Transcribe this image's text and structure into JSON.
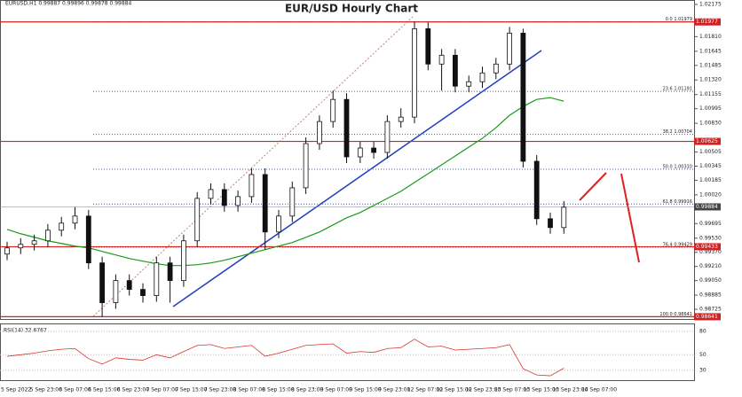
{
  "chart_data": {
    "type": "candlestick",
    "title": "EUR/USD Hourly Chart",
    "header": "EURUSD,H1  0.99887 0.99896 0.99878 0.99884",
    "ylim": [
      0.98615,
      1.02225
    ],
    "yticks": [
      1.02175,
      {
        "value": 1.0181,
        "label": "1.01810"
      },
      1.01645,
      1.01485,
      {
        "value": 1.0132,
        "label": "1.01320"
      },
      1.01155,
      1.00995,
      {
        "value": 1.0083,
        "label": "1.00830"
      },
      1.00505,
      1.00345,
      1.00185,
      {
        "value": 1.0002,
        "label": "1.00020"
      },
      0.99695,
      {
        "value": 0.9953,
        "label": "0.99530"
      },
      {
        "value": 0.9937,
        "label": "0.99370"
      },
      {
        "value": 0.9921,
        "label": "0.99210"
      },
      {
        "value": 0.9905,
        "label": "0.99050"
      },
      0.98885,
      0.98725
    ],
    "x_labels": [
      "5 Sep 2022",
      "5 Sep 23:00",
      "6 Sep 07:00",
      "6 Sep 15:00",
      "6 Sep 23:00",
      "7 Sep 07:00",
      "7 Sep 15:00",
      "7 Sep 23:00",
      "8 Sep 07:00",
      "8 Sep 15:00",
      "8 Sep 23:00",
      "9 Sep 07:00",
      "9 Sep 15:00",
      "9 Sep 23:00",
      "12 Sep 07:00",
      "12 Sep 15:00",
      "12 Sep 23:00",
      "13 Sep 07:00",
      "13 Sep 15:00",
      "13 Sep 23:00",
      "14 Sep 07:00"
    ],
    "open": [
      0.9935,
      0.9942,
      0.9946,
      0.995,
      0.9962,
      0.997,
      0.9978,
      0.9925,
      0.988,
      0.9905,
      0.9895,
      0.9888,
      0.9925,
      0.9905,
      0.995,
      0.9998,
      1.0008,
      0.999,
      1.0,
      1.0025,
      0.996,
      0.9978,
      1.001,
      1.006,
      1.0085,
      1.011,
      1.0045,
      1.0055,
      1.005,
      1.0085,
      1.009,
      1.019,
      1.015,
      1.016,
      1.0125,
      1.013,
      1.014,
      1.015,
      1.0185,
      1.004,
      0.9975,
      0.9965
    ],
    "high": [
      0.9949,
      0.9953,
      0.9957,
      0.9969,
      0.9977,
      0.9988,
      0.9985,
      0.9932,
      0.9912,
      0.9912,
      0.9902,
      0.9932,
      0.9932,
      0.9957,
      1.0005,
      1.0015,
      1.0015,
      1.0007,
      1.0032,
      1.0032,
      0.9985,
      1.0017,
      1.0067,
      1.0092,
      1.012,
      1.0117,
      1.0062,
      1.0062,
      1.0092,
      1.01,
      1.0198,
      1.0197,
      1.0167,
      1.0167,
      1.0137,
      1.0147,
      1.0157,
      1.0192,
      1.019,
      1.0047,
      0.9982,
      0.9995
    ],
    "low": [
      0.9928,
      0.9935,
      0.9939,
      0.9943,
      0.9955,
      0.9963,
      0.9918,
      0.9864,
      0.9873,
      0.9888,
      0.988,
      0.9881,
      0.988,
      0.9898,
      0.9943,
      0.9991,
      0.9983,
      0.9983,
      0.9993,
      0.994,
      0.9953,
      0.9971,
      1.0003,
      1.0053,
      1.0078,
      1.0038,
      1.0038,
      1.0043,
      1.0043,
      1.0078,
      1.0083,
      1.0143,
      1.012,
      1.0118,
      1.0118,
      1.0123,
      1.0133,
      1.0143,
      1.0033,
      0.9968,
      0.9958,
      0.9958
    ],
    "close": [
      0.9942,
      0.9946,
      0.995,
      0.9962,
      0.997,
      0.9978,
      0.9925,
      0.988,
      0.9905,
      0.9895,
      0.9888,
      0.9925,
      0.9905,
      0.995,
      0.9998,
      1.0008,
      0.999,
      1.0,
      1.0025,
      0.996,
      0.9978,
      1.001,
      1.006,
      1.0085,
      1.011,
      1.0045,
      1.0055,
      1.005,
      1.0085,
      1.009,
      1.019,
      1.015,
      1.016,
      1.0125,
      1.013,
      1.014,
      1.015,
      1.0185,
      1.004,
      0.9975,
      0.9965,
      0.9988
    ],
    "moving_average": {
      "color": "#1a9a1a",
      "values": [
        0.9963,
        0.9958,
        0.9954,
        0.995,
        0.9947,
        0.9944,
        0.9942,
        0.9938,
        0.9934,
        0.993,
        0.9927,
        0.9924,
        0.9922,
        0.9922,
        0.9923,
        0.9925,
        0.9928,
        0.9932,
        0.9936,
        0.994,
        0.9944,
        0.9948,
        0.9954,
        0.996,
        0.9968,
        0.9976,
        0.9982,
        0.999,
        0.9998,
        1.0006,
        1.0016,
        1.0026,
        1.0036,
        1.0046,
        1.0056,
        1.0066,
        1.0078,
        1.0092,
        1.0102,
        1.011,
        1.0112,
        1.0108
      ]
    },
    "price_levels": [
      1.01977,
      1.00625,
      0.99433,
      0.98641
    ],
    "last_price": 0.99884,
    "fib_levels": [
      {
        "value": 1.01979,
        "label": "0.0 1.01979"
      },
      {
        "value": 1.01191,
        "label": "23.6 1.01191"
      },
      {
        "value": 1.00704,
        "label": "38.2 1.00704"
      },
      {
        "value": 1.0031,
        "label": "50.0 1.00310"
      },
      {
        "value": 0.99916,
        "label": "61.8 0.99916"
      },
      {
        "value": 0.99429,
        "label": "76.4 0.99429"
      },
      {
        "value": 0.98641,
        "label": "100.0 0.98641"
      }
    ],
    "rsi": {
      "label": "RSI(14) 32.6767",
      "color": "#d9342b",
      "ylim": [
        18.5,
        89
      ],
      "yticks": [
        80,
        50,
        30
      ],
      "values": [
        48,
        50,
        52,
        55,
        57,
        58,
        45,
        38,
        46,
        44,
        43,
        50,
        46,
        54,
        62,
        63,
        58,
        60,
        62,
        48,
        52,
        57,
        62,
        63,
        64,
        52,
        54,
        53,
        58,
        59,
        70,
        60,
        61,
        56,
        57,
        58,
        59,
        63,
        32,
        24,
        23,
        32.7
      ]
    }
  }
}
